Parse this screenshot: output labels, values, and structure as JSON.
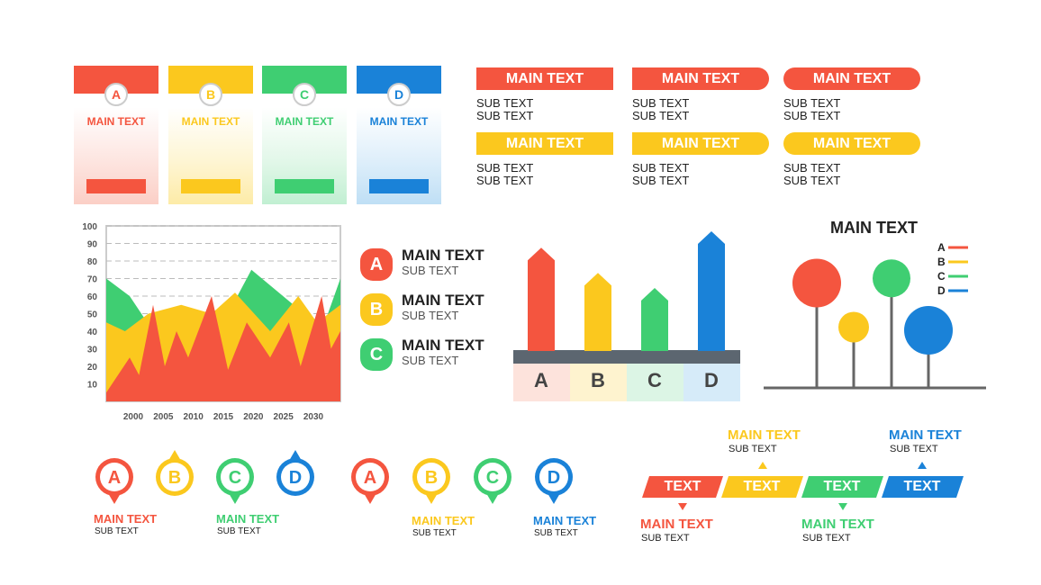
{
  "colors": {
    "red": "#f4553f",
    "yellow": "#fbc81e",
    "green": "#3fce72",
    "blue": "#1a82d8",
    "grey": "#777777"
  },
  "cards": [
    {
      "letter": "A",
      "title": "MAIN TEXT"
    },
    {
      "letter": "B",
      "title": "MAIN TEXT"
    },
    {
      "letter": "C",
      "title": "MAIN TEXT"
    },
    {
      "letter": "D",
      "title": "MAIN TEXT"
    }
  ],
  "banners": {
    "row1": [
      {
        "title": "MAIN TEXT",
        "sub1": "SUB TEXT",
        "sub2": "SUB TEXT"
      },
      {
        "title": "MAIN TEXT",
        "sub1": "SUB TEXT",
        "sub2": "SUB TEXT"
      },
      {
        "title": "MAIN TEXT",
        "sub1": "SUB TEXT",
        "sub2": "SUB TEXT"
      }
    ],
    "row2": [
      {
        "title": "MAIN TEXT",
        "sub1": "SUB TEXT",
        "sub2": "SUB TEXT"
      },
      {
        "title": "MAIN TEXT",
        "sub1": "SUB TEXT",
        "sub2": "SUB TEXT"
      },
      {
        "title": "MAIN TEXT",
        "sub1": "SUB TEXT",
        "sub2": "SUB TEXT"
      }
    ]
  },
  "area_legend": [
    {
      "letter": "A",
      "main": "MAIN TEXT",
      "sub": "SUB TEXT"
    },
    {
      "letter": "B",
      "main": "MAIN TEXT",
      "sub": "SUB TEXT"
    },
    {
      "letter": "C",
      "main": "MAIN TEXT",
      "sub": "SUB TEXT"
    }
  ],
  "bar_chart": {
    "labels": [
      "A",
      "B",
      "C",
      "D"
    ]
  },
  "tree_chart": {
    "title": "MAIN TEXT",
    "legend": [
      "A",
      "B",
      "C",
      "D"
    ]
  },
  "pins_left": [
    {
      "letter": "A",
      "main": "MAIN TEXT",
      "sub": "SUB TEXT"
    },
    {
      "letter": "B"
    },
    {
      "letter": "C",
      "main": "MAIN TEXT",
      "sub": "SUB TEXT"
    },
    {
      "letter": "D"
    }
  ],
  "pins_right": [
    {
      "letter": "A"
    },
    {
      "letter": "B",
      "main": "MAIN TEXT",
      "sub": "SUB TEXT"
    },
    {
      "letter": "C"
    },
    {
      "letter": "D",
      "main": "MAIN TEXT",
      "sub": "SUB TEXT"
    }
  ],
  "timeline": {
    "segments": [
      "TEXT",
      "TEXT",
      "TEXT",
      "TEXT"
    ],
    "captions": [
      {
        "main": "MAIN TEXT",
        "sub": "SUB TEXT"
      },
      {
        "main": "MAIN TEXT",
        "sub": "SUB TEXT"
      },
      {
        "main": "MAIN TEXT",
        "sub": "SUB TEXT"
      },
      {
        "main": "MAIN TEXT",
        "sub": "SUB TEXT"
      }
    ]
  },
  "chart_data": [
    {
      "type": "area",
      "x": [
        2000,
        2005,
        2010,
        2015,
        2020,
        2025,
        2030
      ],
      "y_ticks": [
        10,
        20,
        30,
        40,
        50,
        60,
        70,
        80,
        90,
        100
      ],
      "ylim": [
        0,
        100
      ],
      "grid": true,
      "series": [
        {
          "values": [
            70,
            45,
            60,
            50,
            55,
            60,
            75
          ]
        },
        {
          "values": [
            40,
            50,
            45,
            55,
            40,
            50,
            45
          ]
        },
        {
          "values": [
            10,
            55,
            40,
            60,
            25,
            45,
            60
          ]
        }
      ]
    },
    {
      "type": "bar",
      "categories": [
        "A",
        "B",
        "C",
        "D"
      ],
      "values": [
        82,
        62,
        50,
        95
      ]
    },
    {
      "type": "scatter",
      "title": "MAIN TEXT",
      "series": [
        {
          "name": "A",
          "x": [
            1
          ],
          "y": [
            70
          ],
          "size": 27
        },
        {
          "name": "B",
          "x": [
            2
          ],
          "y": [
            42
          ],
          "size": 17
        },
        {
          "name": "C",
          "x": [
            3
          ],
          "y": [
            73
          ],
          "size": 21
        },
        {
          "name": "D",
          "x": [
            4
          ],
          "y": [
            40
          ],
          "size": 27
        }
      ]
    }
  ]
}
